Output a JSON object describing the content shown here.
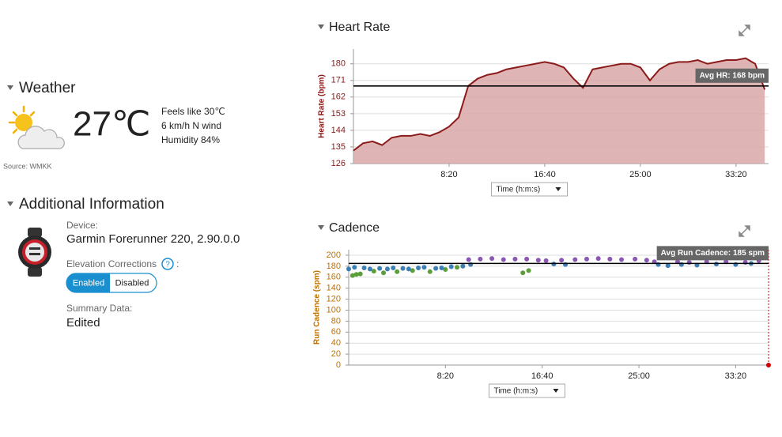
{
  "weather": {
    "title": "Weather",
    "temperature": "27℃",
    "feels_like": "Feels like 30℃",
    "wind": "6 km/h N wind",
    "humidity": "Humidity 84%",
    "source": "Source: WMKK"
  },
  "additional": {
    "title": "Additional Information",
    "device_label": "Device:",
    "device": "Garmin Forerunner 220, 2.90.0.0",
    "elevation_label": "Elevation Corrections",
    "help_icon": "?",
    "elevation_suffix": ":",
    "elevation_options": [
      "Enabled",
      "Disabled"
    ],
    "summary_label": "Summary Data:",
    "summary": "Edited"
  },
  "chart_data": [
    {
      "type": "area",
      "title": "Heart Rate",
      "y_label": "Heart Rate (bpm)",
      "label_color": "#8b1a1a",
      "color": "#8b1a1a",
      "fill": "#d9a7a7",
      "x": [
        0,
        50,
        100,
        150,
        200,
        250,
        300,
        350,
        400,
        450,
        500,
        550,
        600,
        650,
        700,
        750,
        800,
        850,
        900,
        950,
        1000,
        1050,
        1100,
        1150,
        1200,
        1250,
        1300,
        1350,
        1400,
        1450,
        1500,
        1550,
        1600,
        1650,
        1700,
        1750,
        1800,
        1850,
        1900,
        1950,
        2000,
        2050,
        2100,
        2150
      ],
      "values": [
        133,
        137,
        138,
        136,
        140,
        141,
        141,
        142,
        141,
        143,
        146,
        151,
        168,
        172,
        174,
        175,
        177,
        178,
        179,
        180,
        181,
        180,
        178,
        172,
        167,
        177,
        178,
        179,
        180,
        180,
        178,
        171,
        177,
        180,
        181,
        181,
        182,
        180,
        181,
        182,
        182,
        183,
        180,
        166
      ],
      "xlim": [
        0,
        2170
      ],
      "xticks": [
        {
          "value": 500,
          "label": "8:20"
        },
        {
          "value": 1000,
          "label": "16:40"
        },
        {
          "value": 1500,
          "label": "25:00"
        },
        {
          "value": 2000,
          "label": "33:20"
        }
      ],
      "ylim": [
        126,
        188
      ],
      "yticks": [
        126,
        135,
        144,
        153,
        162,
        171,
        180
      ],
      "grid": true,
      "avg": 168,
      "avg_label": "Avg HR: 168 bpm",
      "x_selector": "Time (h:m:s)"
    },
    {
      "type": "scatter",
      "title": "Cadence",
      "y_label": "Run Cadence (spm)",
      "label_color": "#c07000",
      "series": [
        {
          "color": "#5b9e3a",
          "x": [
            20,
            40,
            60,
            130,
            180,
            250,
            330,
            420,
            500,
            560,
            900,
            930
          ],
          "values": [
            163,
            165,
            166,
            171,
            168,
            170,
            172,
            170,
            174,
            178,
            168,
            172
          ]
        },
        {
          "color": "#3d7fb5",
          "x": [
            0,
            30,
            80,
            110,
            160,
            200,
            230,
            280,
            310,
            360,
            390,
            450,
            480,
            530,
            590,
            630,
            1060,
            1120,
            1600,
            1650,
            1720,
            1800,
            1900,
            2000,
            2080
          ],
          "values": [
            175,
            178,
            177,
            175,
            176,
            175,
            177,
            176,
            175,
            177,
            178,
            176,
            177,
            179,
            180,
            183,
            184,
            183,
            183,
            181,
            183,
            182,
            184,
            183,
            185
          ]
        },
        {
          "color": "#8a58b3",
          "x": [
            620,
            680,
            740,
            800,
            860,
            920,
            980,
            1020,
            1100,
            1170,
            1230,
            1290,
            1350,
            1410,
            1480,
            1540,
            1580,
            1700,
            1760,
            1850,
            1950,
            2050,
            2120
          ],
          "values": [
            192,
            193,
            194,
            192,
            193,
            193,
            191,
            190,
            191,
            192,
            193,
            194,
            193,
            192,
            193,
            191,
            188,
            188,
            187,
            188,
            188,
            187,
            190
          ]
        },
        {
          "color": "#d00000",
          "drop_line": true,
          "x": [
            2170
          ],
          "values": [
            0
          ]
        }
      ],
      "xlim": [
        0,
        2170
      ],
      "xticks": [
        {
          "value": 500,
          "label": "8:20"
        },
        {
          "value": 1000,
          "label": "16:40"
        },
        {
          "value": 1500,
          "label": "25:00"
        },
        {
          "value": 2000,
          "label": "33:20"
        }
      ],
      "ylim": [
        0,
        210
      ],
      "yticks": [
        0,
        20,
        40,
        60,
        80,
        100,
        120,
        140,
        160,
        180,
        200
      ],
      "grid": true,
      "avg": 185,
      "avg_label": "Avg Run Cadence: 185 spm",
      "x_selector": "Time (h:m:s)"
    }
  ]
}
